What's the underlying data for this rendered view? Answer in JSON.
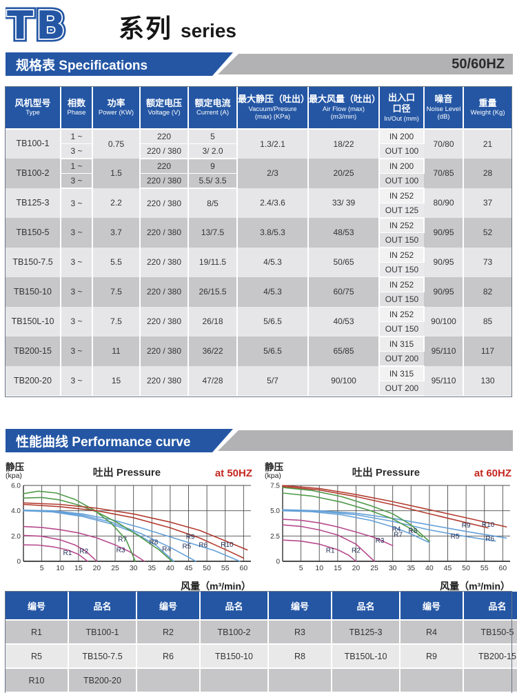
{
  "logo": {
    "tb": "TB",
    "cn": "系列",
    "en": "series"
  },
  "banners": {
    "specs": {
      "title": "规格表 Specifications",
      "right": "50/60HZ"
    },
    "curve": {
      "title": "性能曲线 Performance curve",
      "right": ""
    }
  },
  "colors": {
    "accent_blue": "#2456a4",
    "banner_gray": "#b2b2b4",
    "freq_red": "#c4271f",
    "row_light": "#e6e6e8",
    "row_dark": "#c7c7c9",
    "line_magenta": "#b5498c",
    "line_blue": "#64a0d8",
    "line_green": "#4f9a49",
    "line_red": "#b23c30"
  },
  "spec_table": {
    "headers": [
      {
        "cn": "风机型号",
        "en": "Type"
      },
      {
        "cn": "相数",
        "en": "Phase"
      },
      {
        "cn": "功率",
        "en": "Power (KW)"
      },
      {
        "cn": "额定电压",
        "en": "Voltage (V)"
      },
      {
        "cn": "额定电流",
        "en": "Current (A)"
      },
      {
        "cn": "最大静压（吐出）",
        "en": "Vacuum/Presure|(max) (KPa)"
      },
      {
        "cn": "最大风量（吐出）",
        "en": "Air Flow (max)|(m3/min)"
      },
      {
        "cn": "出入口|口径",
        "en": "In/Out (mm)"
      },
      {
        "cn": "噪音",
        "en": "Noise Level|(dB)"
      },
      {
        "cn": "重量",
        "en": "Weight (Kg)"
      }
    ],
    "rows": [
      {
        "model": "TB100-1",
        "phase": [
          "1 ~",
          "3 ~"
        ],
        "power": "0.75",
        "voltage": [
          "220",
          "220 / 380"
        ],
        "current": [
          "5",
          "3/ 2.0"
        ],
        "vacuum": "1.3/2.1",
        "airflow": "18/22",
        "inout": [
          "IN 200",
          "OUT 100"
        ],
        "noise": "70/80",
        "weight": "21"
      },
      {
        "model": "TB100-2",
        "phase": [
          "1 ~",
          "3 ~"
        ],
        "power": "1.5",
        "voltage": [
          "220",
          "220 / 380"
        ],
        "current": [
          "9",
          "5.5/ 3.5"
        ],
        "vacuum": "2/3",
        "airflow": "20/25",
        "inout": [
          "IN 200",
          "OUT 100"
        ],
        "noise": "70/85",
        "weight": "28"
      },
      {
        "model": "TB125-3",
        "phase": "3 ~",
        "power": "2.2",
        "voltage": "220 / 380",
        "current": "8/5",
        "vacuum": "2.4/3.6",
        "airflow": "33/ 39",
        "inout": [
          "IN 252",
          "OUT 125"
        ],
        "noise": "80/90",
        "weight": "37"
      },
      {
        "model": "TB150-5",
        "phase": "3 ~",
        "power": "3.7",
        "voltage": "220 / 380",
        "current": "13/7.5",
        "vacuum": "3.8/5.3",
        "airflow": "48/53",
        "inout": [
          "IN 252",
          "OUT 150"
        ],
        "noise": "90/95",
        "weight": "52"
      },
      {
        "model": "TB150-7.5",
        "phase": "3 ~",
        "power": "5.5",
        "voltage": "220 / 380",
        "current": "19/11.5",
        "vacuum": "4/5.3",
        "airflow": "50/65",
        "inout": [
          "IN 252",
          "OUT 150"
        ],
        "noise": "90/95",
        "weight": "73"
      },
      {
        "model": "TB150-10",
        "phase": "3 ~",
        "power": "7.5",
        "voltage": "220 / 380",
        "current": "26/15.5",
        "vacuum": "4/5.3",
        "airflow": "60/75",
        "inout": [
          "IN 252",
          "OUT 150"
        ],
        "noise": "90/95",
        "weight": "82"
      },
      {
        "model": "TB150L-10",
        "phase": "3 ~",
        "power": "7.5",
        "voltage": "220 / 380",
        "current": "26/18",
        "vacuum": "5/6.5",
        "airflow": "40/53",
        "inout": [
          "IN 252",
          "OUT 150"
        ],
        "noise": "90/100",
        "weight": "85"
      },
      {
        "model": "TB200-15",
        "phase": "3 ~",
        "power": "11",
        "voltage": "220 / 380",
        "current": "36/22",
        "vacuum": "5/6.5",
        "airflow": "65/85",
        "inout": [
          "IN 315",
          "OUT 200"
        ],
        "noise": "95/110",
        "weight": "117"
      },
      {
        "model": "TB200-20",
        "phase": "3 ~",
        "power": "15",
        "voltage": "220 / 380",
        "current": "47/28",
        "vacuum": "5/7",
        "airflow": "90/100",
        "inout": [
          "IN 315",
          "OUT 200"
        ],
        "noise": "95/110",
        "weight": "130"
      }
    ]
  },
  "chart_data": [
    {
      "name": "pressure-curve-50hz",
      "type": "line",
      "title": "吐出 Pressure",
      "freq_label": "at 50HZ",
      "ylabel_cn": "静压",
      "ylabel_unit": "(kpa)",
      "xlabel": "风量（m³/min）",
      "xlim": [
        0,
        62
      ],
      "ylim": [
        0,
        6
      ],
      "grid": true,
      "legend_position": "on-curve",
      "yticks": [
        {
          "v": 0,
          "label": "0"
        },
        {
          "v": 2,
          "label": "2.0"
        },
        {
          "v": 4,
          "label": "4.0"
        },
        {
          "v": 6,
          "label": "6.0"
        }
      ],
      "xticks": [
        5,
        10,
        15,
        20,
        25,
        30,
        35,
        40,
        45,
        50,
        55,
        60
      ],
      "series": [
        {
          "name": "R1",
          "color": "#b5498c",
          "label_pos": [
            12,
            0.5
          ],
          "points": [
            [
              0,
              1.3
            ],
            [
              4,
              1.28
            ],
            [
              8,
              1.15
            ],
            [
              12,
              0.9
            ],
            [
              15,
              0.55
            ],
            [
              17.5,
              0
            ]
          ]
        },
        {
          "name": "R2",
          "color": "#b5498c",
          "label_pos": [
            16.5,
            0.62
          ],
          "points": [
            [
              0,
              2.05
            ],
            [
              5,
              1.98
            ],
            [
              10,
              1.7
            ],
            [
              14,
              1.3
            ],
            [
              17,
              0.8
            ],
            [
              20,
              0
            ]
          ]
        },
        {
          "name": "R3",
          "color": "#b5498c",
          "label_pos": [
            26.5,
            0.72
          ],
          "points": [
            [
              0,
              2.75
            ],
            [
              5,
              2.68
            ],
            [
              10,
              2.5
            ],
            [
              15,
              2.25
            ],
            [
              20,
              1.85
            ],
            [
              25,
              1.3
            ],
            [
              29,
              0.75
            ],
            [
              33,
              0
            ]
          ]
        },
        {
          "name": "R4",
          "color": "#64a0d8",
          "label_pos": [
            39,
            0.78
          ],
          "points": [
            [
              0,
              4.0
            ],
            [
              8,
              3.9
            ],
            [
              16,
              3.55
            ],
            [
              24,
              2.95
            ],
            [
              30,
              2.3
            ],
            [
              36,
              1.3
            ],
            [
              41,
              0
            ]
          ]
        },
        {
          "name": "R5",
          "color": "#64a0d8",
          "label_pos": [
            44.5,
            1.0
          ],
          "points": [
            [
              0,
              4.02
            ],
            [
              8,
              3.95
            ],
            [
              16,
              3.65
            ],
            [
              24,
              3.1
            ],
            [
              32,
              2.2
            ],
            [
              40,
              1.1
            ],
            [
              47,
              0
            ]
          ]
        },
        {
          "name": "R6",
          "color": "#64a0d8",
          "label_pos": [
            49,
            1.12
          ],
          "points": [
            [
              0,
              4.05
            ],
            [
              8,
              4.0
            ],
            [
              16,
              3.75
            ],
            [
              24,
              3.3
            ],
            [
              32,
              2.65
            ],
            [
              42,
              1.75
            ],
            [
              52,
              0.85
            ],
            [
              59,
              0
            ]
          ]
        },
        {
          "name": "R7",
          "color": "#4f9a49",
          "label_pos": [
            27,
            1.55
          ],
          "points": [
            [
              0,
              5.35
            ],
            [
              4,
              5.55
            ],
            [
              9,
              5.4
            ],
            [
              14,
              4.9
            ],
            [
              19,
              4.1
            ],
            [
              24,
              3.0
            ],
            [
              28,
              1.7
            ],
            [
              30.5,
              0
            ]
          ]
        },
        {
          "name": "R8",
          "color": "#4f9a49",
          "label_pos": [
            35.5,
            1.35
          ],
          "points": [
            [
              0,
              5.0
            ],
            [
              5,
              5.05
            ],
            [
              10,
              4.85
            ],
            [
              15,
              4.45
            ],
            [
              20,
              3.9
            ],
            [
              26,
              3.0
            ],
            [
              32,
              1.9
            ],
            [
              37,
              0.9
            ],
            [
              40.5,
              0
            ]
          ]
        },
        {
          "name": "R9",
          "color": "#b23c30",
          "label_pos": [
            45.5,
            1.78
          ],
          "points": [
            [
              0,
              4.5
            ],
            [
              10,
              4.32
            ],
            [
              20,
              4.0
            ],
            [
              30,
              3.45
            ],
            [
              40,
              2.65
            ],
            [
              48,
              1.85
            ],
            [
              56,
              0.8
            ],
            [
              60,
              0.25
            ]
          ]
        },
        {
          "name": "R10",
          "color": "#b23c30",
          "label_pos": [
            55.5,
            1.15
          ],
          "points": [
            [
              0,
              4.62
            ],
            [
              10,
              4.5
            ],
            [
              20,
              4.2
            ],
            [
              30,
              3.75
            ],
            [
              40,
              3.1
            ],
            [
              48,
              2.45
            ],
            [
              56,
              1.5
            ],
            [
              61,
              0.9
            ]
          ]
        }
      ]
    },
    {
      "name": "pressure-curve-60hz",
      "type": "line",
      "title": "吐出 Pressure",
      "freq_label": "at 60HZ",
      "ylabel_cn": "静压",
      "ylabel_unit": "(kpa)",
      "xlabel": "风量（m³/min）",
      "xlim": [
        0,
        62
      ],
      "ylim": [
        0,
        7.5
      ],
      "grid": true,
      "legend_position": "on-curve",
      "yticks": [
        {
          "v": 0,
          "label": "0"
        },
        {
          "v": 2.5,
          "label": "2.5"
        },
        {
          "v": 5,
          "label": "5.0"
        },
        {
          "v": 7.5,
          "label": "7.5"
        }
      ],
      "xticks": [
        5,
        10,
        15,
        20,
        25,
        30,
        35,
        40,
        45,
        50,
        55,
        60
      ],
      "series": [
        {
          "name": "R1",
          "color": "#b5498c",
          "label_pos": [
            13,
            0.85
          ],
          "points": [
            [
              0,
              2.1
            ],
            [
              5,
              2.0
            ],
            [
              10,
              1.7
            ],
            [
              15,
              1.15
            ],
            [
              18,
              0.6
            ],
            [
              20,
              0
            ]
          ]
        },
        {
          "name": "R2",
          "color": "#b5498c",
          "label_pos": [
            20,
            0.85
          ],
          "points": [
            [
              0,
              3.6
            ],
            [
              5,
              3.45
            ],
            [
              10,
              3.1
            ],
            [
              15,
              2.6
            ],
            [
              20,
              1.7
            ],
            [
              25,
              0
            ]
          ]
        },
        {
          "name": "R3",
          "color": "#b5498c",
          "label_pos": [
            26.5,
            1.85
          ],
          "points": [
            [
              0,
              4.15
            ],
            [
              5,
              4.05
            ],
            [
              10,
              3.8
            ],
            [
              15,
              3.4
            ],
            [
              20,
              2.9
            ],
            [
              25,
              2.35
            ],
            [
              30,
              1.55
            ]
          ]
        },
        {
          "name": "R4",
          "color": "#64a0d8",
          "label_pos": [
            31,
            2.95
          ],
          "points": [
            [
              0,
              5.0
            ],
            [
              8,
              4.9
            ],
            [
              16,
              4.6
            ],
            [
              24,
              4.05
            ],
            [
              30,
              3.4
            ],
            [
              35,
              2.7
            ],
            [
              40,
              1.85
            ]
          ]
        },
        {
          "name": "R5",
          "color": "#64a0d8",
          "label_pos": [
            47,
            2.25
          ],
          "points": [
            [
              0,
              5.05
            ],
            [
              10,
              4.95
            ],
            [
              20,
              4.6
            ],
            [
              30,
              3.95
            ],
            [
              40,
              3.1
            ],
            [
              50,
              2.45
            ],
            [
              58,
              2.0
            ]
          ]
        },
        {
          "name": "R6",
          "color": "#64a0d8",
          "label_pos": [
            56.5,
            2.0
          ],
          "points": [
            [
              0,
              5.1
            ],
            [
              10,
              5.0
            ],
            [
              20,
              4.75
            ],
            [
              30,
              4.25
            ],
            [
              40,
              3.6
            ],
            [
              50,
              2.95
            ],
            [
              61,
              2.3
            ]
          ]
        },
        {
          "name": "R7",
          "color": "#4f9a49",
          "label_pos": [
            31.5,
            2.42
          ],
          "points": [
            [
              0,
              6.75
            ],
            [
              8,
              6.45
            ],
            [
              16,
              5.85
            ],
            [
              24,
              5.0
            ],
            [
              30,
              4.2
            ],
            [
              35,
              3.2
            ],
            [
              38,
              2.4
            ]
          ]
        },
        {
          "name": "R8",
          "color": "#4f9a49",
          "label_pos": [
            35.5,
            2.78
          ],
          "points": [
            [
              0,
              7.3
            ],
            [
              8,
              7.0
            ],
            [
              16,
              6.4
            ],
            [
              24,
              5.5
            ],
            [
              30,
              4.7
            ],
            [
              35,
              3.6
            ],
            [
              40,
              1.95
            ]
          ]
        },
        {
          "name": "R9",
          "color": "#b23c30",
          "label_pos": [
            50,
            3.35
          ],
          "points": [
            [
              0,
              7.4
            ],
            [
              10,
              7.05
            ],
            [
              20,
              6.4
            ],
            [
              30,
              5.6
            ],
            [
              40,
              4.7
            ],
            [
              48,
              4.0
            ],
            [
              56,
              3.3
            ]
          ]
        },
        {
          "name": "R10",
          "color": "#b23c30",
          "label_pos": [
            56,
            3.42
          ],
          "points": [
            [
              0,
              7.5
            ],
            [
              10,
              7.2
            ],
            [
              20,
              6.6
            ],
            [
              30,
              5.9
            ],
            [
              40,
              5.1
            ],
            [
              50,
              4.3
            ],
            [
              61,
              3.4
            ]
          ]
        }
      ]
    }
  ],
  "legend_table": {
    "headers": [
      "编号",
      "品名",
      "编号",
      "品名",
      "编号",
      "品名",
      "编号",
      "品名"
    ],
    "rows": [
      [
        "R1",
        "TB100-1",
        "R2",
        "TB100-2",
        "R3",
        "TB125-3",
        "R4",
        "TB150-5"
      ],
      [
        "R5",
        "TB150-7.5",
        "R6",
        "TB150-10",
        "R8",
        "TB150L-10",
        "R9",
        "TB200-15"
      ],
      [
        "R10",
        "TB200-20",
        "",
        "",
        "",
        "",
        "",
        ""
      ]
    ]
  }
}
